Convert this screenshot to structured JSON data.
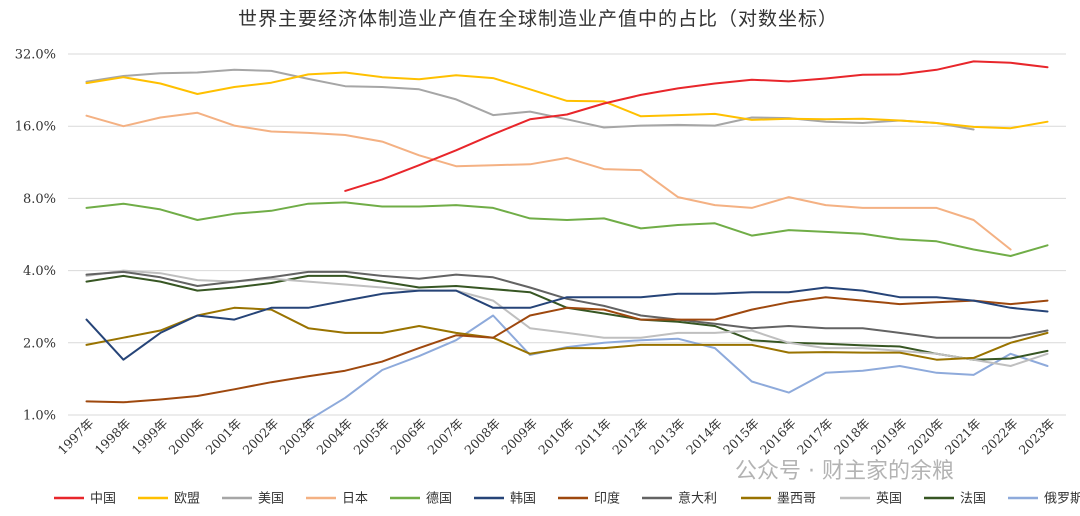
{
  "watermark": "公众号 · 财主家的余粮",
  "chart_data": {
    "type": "line",
    "title": "世界主要经济体制造业产值在全球制造业产值中的占比（对数坐标）",
    "xlabel": "",
    "ylabel": "",
    "yscale": "log",
    "ylim": [
      1.0,
      32.0
    ],
    "yticks": [
      1.0,
      2.0,
      4.0,
      8.0,
      16.0,
      32.0
    ],
    "ytick_labels": [
      "1.0%",
      "2.0%",
      "4.0%",
      "8.0%",
      "16.0%",
      "32.0%"
    ],
    "grid": true,
    "legend": "bottom",
    "categories": [
      "1997年",
      "1998年",
      "1999年",
      "2000年",
      "2001年",
      "2002年",
      "2003年",
      "2004年",
      "2005年",
      "2006年",
      "2007年",
      "2008年",
      "2009年",
      "2010年",
      "2011年",
      "2012年",
      "2013年",
      "2014年",
      "2015年",
      "2016年",
      "2017年",
      "2018年",
      "2019年",
      "2020年",
      "2021年",
      "2022年",
      "2023年"
    ],
    "series": [
      {
        "name": "中国",
        "color": "#e8262b",
        "values": [
          null,
          null,
          null,
          null,
          null,
          null,
          null,
          8.6,
          9.6,
          11.0,
          12.7,
          14.8,
          17.1,
          17.9,
          19.9,
          21.6,
          23.0,
          24.1,
          25.0,
          24.6,
          25.3,
          26.2,
          26.3,
          27.5,
          29.8,
          29.4,
          28.2
        ]
      },
      {
        "name": "欧盟",
        "color": "#ffc000",
        "values": [
          24.2,
          25.6,
          24.1,
          21.8,
          23.3,
          24.3,
          26.3,
          26.8,
          25.6,
          25.1,
          26.1,
          25.4,
          22.8,
          20.4,
          20.3,
          17.6,
          17.8,
          18.0,
          17.0,
          17.2,
          17.1,
          17.2,
          16.9,
          16.5,
          15.9,
          15.7,
          16.7
        ]
      },
      {
        "name": "美国",
        "color": "#a6a6a6",
        "values": [
          24.5,
          25.9,
          26.6,
          26.8,
          27.5,
          27.2,
          25.2,
          23.5,
          23.3,
          22.8,
          20.7,
          17.8,
          18.4,
          17.1,
          15.8,
          16.1,
          16.2,
          16.1,
          17.4,
          17.3,
          16.7,
          16.5,
          16.9,
          16.5,
          15.5,
          null,
          null
        ]
      },
      {
        "name": "日本",
        "color": "#f4b183",
        "values": [
          17.7,
          16.0,
          17.4,
          18.2,
          16.1,
          15.2,
          15.0,
          14.7,
          13.8,
          12.1,
          10.9,
          11.0,
          11.1,
          11.8,
          10.6,
          10.5,
          8.1,
          7.5,
          7.3,
          8.1,
          7.5,
          7.3,
          7.3,
          7.3,
          6.5,
          4.9,
          null
        ]
      },
      {
        "name": "德国",
        "color": "#70ad47",
        "values": [
          7.3,
          7.6,
          7.2,
          6.5,
          6.9,
          7.1,
          7.6,
          7.7,
          7.4,
          7.4,
          7.5,
          7.3,
          6.6,
          6.5,
          6.6,
          6.0,
          6.2,
          6.3,
          5.6,
          5.9,
          5.8,
          5.7,
          5.4,
          5.3,
          4.9,
          4.6,
          5.1
        ]
      },
      {
        "name": "韩国",
        "color": "#264478",
        "values": [
          2.5,
          1.7,
          2.2,
          2.6,
          2.5,
          2.8,
          2.8,
          3.0,
          3.2,
          3.3,
          3.3,
          2.8,
          2.8,
          3.1,
          3.1,
          3.1,
          3.2,
          3.2,
          3.25,
          3.25,
          3.4,
          3.3,
          3.1,
          3.1,
          3.0,
          2.8,
          2.7
        ]
      },
      {
        "name": "印度",
        "color": "#9e480e",
        "values": [
          1.14,
          1.13,
          1.16,
          1.2,
          1.28,
          1.37,
          1.45,
          1.53,
          1.67,
          1.9,
          2.15,
          2.1,
          2.6,
          2.8,
          2.75,
          2.5,
          2.5,
          2.5,
          2.75,
          2.95,
          3.1,
          3.0,
          2.9,
          2.95,
          3.0,
          2.9,
          3.0
        ]
      },
      {
        "name": "意大利",
        "color": "#636363",
        "values": [
          3.85,
          3.95,
          3.75,
          3.45,
          3.6,
          3.75,
          3.95,
          3.95,
          3.8,
          3.7,
          3.85,
          3.75,
          3.4,
          3.05,
          2.85,
          2.6,
          2.5,
          2.4,
          2.3,
          2.35,
          2.3,
          2.3,
          2.2,
          2.1,
          2.1,
          2.1,
          2.25
        ]
      },
      {
        "name": "墨西哥",
        "color": "#997300",
        "values": [
          1.96,
          2.1,
          2.25,
          2.6,
          2.8,
          2.75,
          2.3,
          2.2,
          2.2,
          2.35,
          2.2,
          2.1,
          1.8,
          1.9,
          1.9,
          1.96,
          1.96,
          1.96,
          1.96,
          1.82,
          1.83,
          1.82,
          1.82,
          1.7,
          1.73,
          2.0,
          2.2
        ]
      },
      {
        "name": "英国",
        "color": "#bfbfbf",
        "values": [
          3.8,
          4.0,
          3.9,
          3.65,
          3.6,
          3.7,
          3.6,
          3.5,
          3.4,
          3.3,
          3.3,
          3.0,
          2.3,
          2.2,
          2.1,
          2.1,
          2.2,
          2.2,
          2.25,
          2.0,
          1.9,
          1.9,
          1.85,
          1.8,
          1.7,
          1.6,
          1.8
        ]
      },
      {
        "name": "法国",
        "color": "#375623",
        "values": [
          3.6,
          3.8,
          3.6,
          3.3,
          3.4,
          3.55,
          3.8,
          3.8,
          3.6,
          3.4,
          3.45,
          3.35,
          3.25,
          2.8,
          2.65,
          2.5,
          2.45,
          2.35,
          2.05,
          2.0,
          1.98,
          1.95,
          1.93,
          1.8,
          1.7,
          1.72,
          1.85
        ]
      },
      {
        "name": "俄罗斯",
        "color": "#8eaadb",
        "values": [
          null,
          null,
          null,
          null,
          null,
          null,
          0.95,
          1.18,
          1.54,
          1.76,
          2.05,
          2.6,
          1.78,
          1.92,
          2.0,
          2.05,
          2.08,
          1.9,
          1.38,
          1.24,
          1.5,
          1.53,
          1.6,
          1.5,
          1.47,
          1.8,
          1.6
        ]
      }
    ]
  }
}
